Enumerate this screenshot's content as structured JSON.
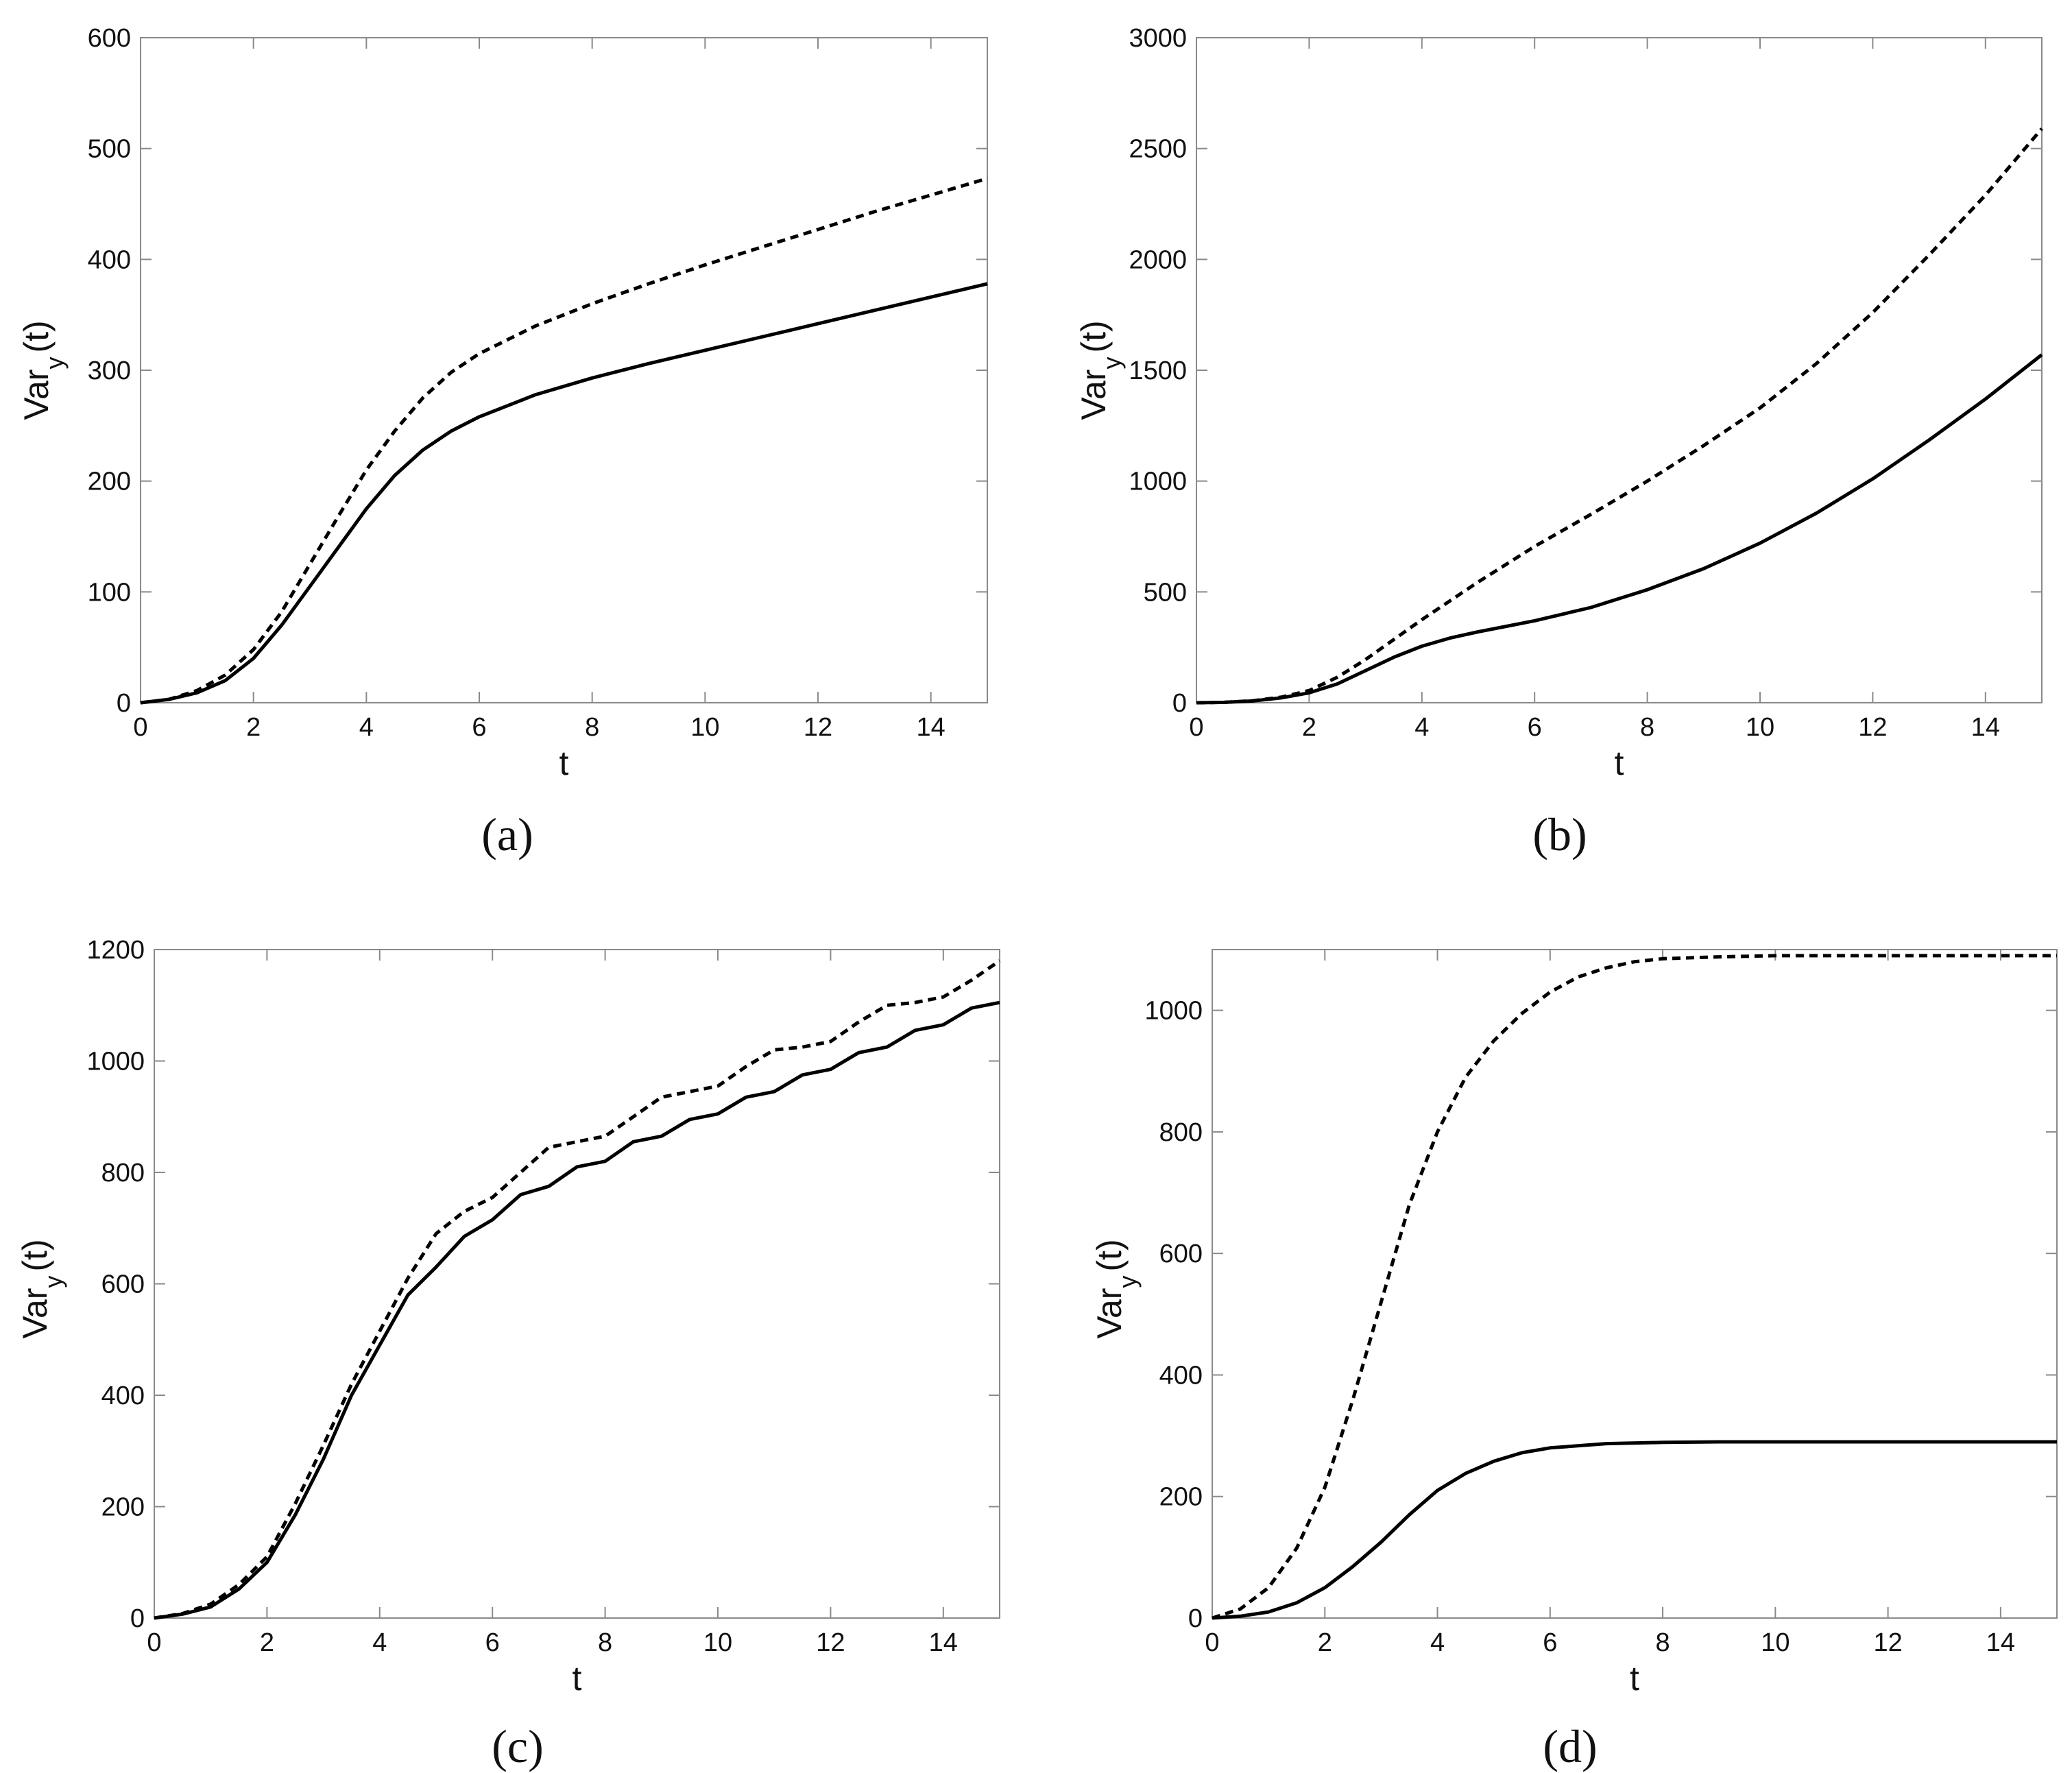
{
  "chart_data": [
    {
      "panel": "(a)",
      "type": "line",
      "xlabel": "t",
      "ylabel": {
        "main": "Var",
        "sub": "y",
        "tail": "(t)"
      },
      "xlim": [
        0,
        15
      ],
      "ylim": [
        0,
        600
      ],
      "xticks": [
        0,
        2,
        4,
        6,
        8,
        10,
        12,
        14
      ],
      "yticks": [
        0,
        100,
        200,
        300,
        400,
        500,
        600
      ],
      "series": [
        {
          "name": "solid",
          "style": "solid",
          "x": [
            0,
            0.5,
            1,
            1.5,
            2,
            2.5,
            3,
            3.5,
            4,
            4.5,
            5,
            5.5,
            6,
            7,
            8,
            9,
            10,
            11,
            12,
            13,
            14,
            15
          ],
          "y": [
            0,
            3,
            9,
            20,
            40,
            70,
            105,
            140,
            175,
            205,
            228,
            245,
            258,
            278,
            293,
            306,
            318,
            330,
            342,
            354,
            366,
            378
          ]
        },
        {
          "name": "dashed",
          "style": "dashed",
          "x": [
            0,
            0.5,
            1,
            1.5,
            2,
            2.5,
            3,
            3.5,
            4,
            4.5,
            5,
            5.5,
            6,
            7,
            8,
            9,
            10,
            11,
            12,
            13,
            14,
            15
          ],
          "y": [
            0,
            3,
            11,
            25,
            48,
            82,
            125,
            168,
            210,
            245,
            275,
            298,
            315,
            340,
            360,
            378,
            395,
            411,
            427,
            443,
            458,
            473
          ]
        }
      ]
    },
    {
      "panel": "(b)",
      "type": "line",
      "xlabel": "t",
      "ylabel": {
        "main": "Var",
        "sub": "y",
        "tail": "(t)"
      },
      "xlim": [
        0,
        15
      ],
      "ylim": [
        0,
        3000
      ],
      "xticks": [
        0,
        2,
        4,
        6,
        8,
        10,
        12,
        14
      ],
      "yticks": [
        0,
        500,
        1000,
        1500,
        2000,
        2500,
        3000
      ],
      "series": [
        {
          "name": "solid",
          "style": "solid",
          "x": [
            0,
            0.5,
            1,
            1.5,
            2,
            2.5,
            3,
            3.5,
            4,
            4.5,
            5,
            5.5,
            6,
            7,
            8,
            9,
            10,
            11,
            12,
            13,
            14,
            15
          ],
          "y": [
            0,
            2,
            8,
            22,
            45,
            85,
            145,
            205,
            255,
            292,
            320,
            345,
            370,
            430,
            510,
            605,
            720,
            855,
            1010,
            1185,
            1370,
            1570
          ]
        },
        {
          "name": "dashed",
          "style": "dashed",
          "x": [
            0,
            0.5,
            1,
            1.5,
            2,
            2.5,
            3,
            3.5,
            4,
            4.5,
            5,
            5.5,
            6,
            7,
            8,
            9,
            10,
            11,
            12,
            13,
            14,
            15
          ],
          "y": [
            0,
            2,
            9,
            25,
            55,
            115,
            195,
            285,
            375,
            460,
            545,
            625,
            705,
            850,
            1000,
            1160,
            1330,
            1530,
            1760,
            2020,
            2290,
            2590
          ]
        }
      ]
    },
    {
      "panel": "(c)",
      "type": "line",
      "xlabel": "t",
      "ylabel": {
        "main": "Var",
        "sub": "y",
        "tail": "(t)"
      },
      "xlim": [
        0,
        15
      ],
      "ylim": [
        0,
        1200
      ],
      "xticks": [
        0,
        2,
        4,
        6,
        8,
        10,
        12,
        14
      ],
      "yticks": [
        0,
        200,
        400,
        600,
        800,
        1000,
        1200
      ],
      "series": [
        {
          "name": "solid",
          "style": "solid",
          "x": [
            0,
            0.5,
            1,
            1.5,
            2,
            2.5,
            3,
            3.5,
            4,
            4.5,
            5,
            5.5,
            6,
            6.5,
            7,
            7.5,
            8,
            8.5,
            9,
            9.5,
            10,
            10.5,
            11,
            11.5,
            12,
            12.5,
            13,
            13.5,
            14,
            14.5,
            15
          ],
          "y": [
            0,
            7,
            20,
            52,
            100,
            185,
            285,
            400,
            490,
            580,
            630,
            685,
            715,
            760,
            775,
            810,
            820,
            855,
            865,
            895,
            905,
            935,
            945,
            975,
            985,
            1015,
            1025,
            1055,
            1065,
            1095,
            1105
          ]
        },
        {
          "name": "dashed",
          "style": "dashed",
          "x": [
            0,
            0.5,
            1,
            1.5,
            2,
            2.5,
            3,
            3.5,
            4,
            4.5,
            5,
            5.5,
            6,
            6.5,
            7,
            7.5,
            8,
            8.5,
            9,
            9.5,
            10,
            10.5,
            11,
            11.5,
            12,
            12.5,
            13,
            13.5,
            14,
            14.5,
            15
          ],
          "y": [
            0,
            8,
            25,
            60,
            110,
            205,
            310,
            420,
            515,
            610,
            690,
            730,
            755,
            800,
            845,
            855,
            865,
            900,
            935,
            945,
            955,
            990,
            1020,
            1025,
            1035,
            1070,
            1100,
            1105,
            1115,
            1145,
            1180
          ]
        }
      ]
    },
    {
      "panel": "(d)",
      "type": "line",
      "xlabel": "t",
      "ylabel": {
        "main": "Var",
        "sub": "y",
        "tail": "(t)"
      },
      "xlim": [
        0,
        15
      ],
      "ylim": [
        0,
        1100
      ],
      "xticks": [
        0,
        2,
        4,
        6,
        8,
        10,
        12,
        14
      ],
      "yticks": [
        0,
        200,
        400,
        600,
        800,
        1000
      ],
      "series": [
        {
          "name": "solid",
          "style": "solid",
          "x": [
            0,
            0.5,
            1,
            1.5,
            2,
            2.5,
            3,
            3.5,
            4,
            4.5,
            5,
            5.5,
            6,
            7,
            8,
            9,
            10,
            11,
            12,
            13,
            14,
            15
          ],
          "y": [
            0,
            3,
            10,
            25,
            50,
            85,
            125,
            170,
            210,
            238,
            258,
            272,
            280,
            287,
            289,
            290,
            290,
            290,
            290,
            290,
            290,
            290
          ]
        },
        {
          "name": "dashed",
          "style": "dashed",
          "x": [
            0,
            0.5,
            1,
            1.5,
            2,
            2.5,
            3,
            3.5,
            4,
            4.5,
            5,
            5.5,
            6,
            6.5,
            7,
            7.5,
            8,
            9,
            10,
            11,
            12,
            13,
            14,
            15
          ],
          "y": [
            0,
            15,
            50,
            115,
            215,
            360,
            520,
            680,
            800,
            890,
            950,
            995,
            1030,
            1055,
            1070,
            1080,
            1085,
            1088,
            1090,
            1090,
            1090,
            1090,
            1090,
            1090
          ]
        }
      ]
    }
  ]
}
